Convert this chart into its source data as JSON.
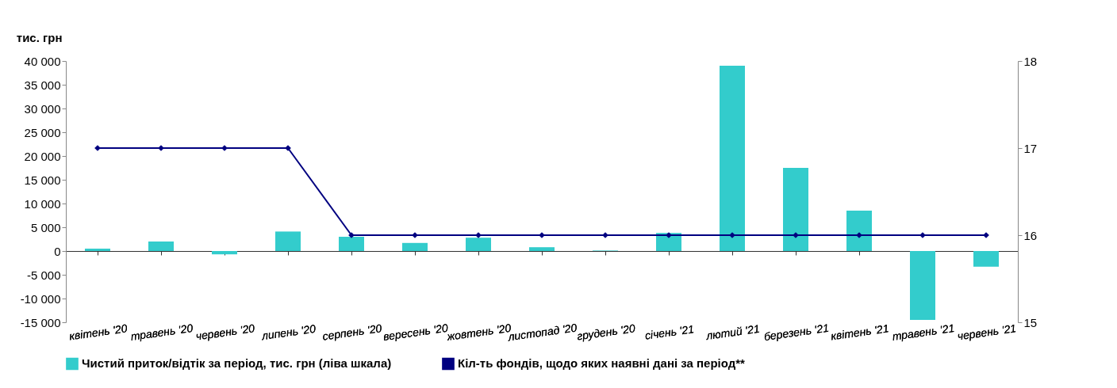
{
  "chart_data": {
    "type": "bar",
    "ylabel": "тис. грн",
    "categories": [
      "квітень '20",
      "травень '20",
      "червень '20",
      "липень '20",
      "серпень '20",
      "вересень '20",
      "жовтень '20",
      "листопад '20",
      "грудень '20",
      "січень '21",
      "лютий '21",
      "березень '21",
      "квітень '21",
      "травень '21",
      "червень '21"
    ],
    "series": [
      {
        "name": "Чистий приток/відтік за період, тис. грн (ліва шкала)",
        "color": "#33cccc",
        "values": [
          500,
          2000,
          -700,
          4100,
          3000,
          1700,
          2800,
          800,
          100,
          3800,
          39000,
          17500,
          8500,
          -14500,
          -3300
        ]
      },
      {
        "name": "Кіл-ть фондів, щодо яких наявні дані за період**",
        "color": "#000080",
        "type": "line",
        "axis": "y2",
        "values": [
          17,
          17,
          17,
          17,
          16,
          16,
          16,
          16,
          16,
          16,
          16,
          16,
          16,
          16,
          16
        ]
      }
    ],
    "ylim": [
      -15000,
      40000
    ],
    "yticks": [
      {
        "value": -15000,
        "label": "-15 000"
      },
      {
        "value": -10000,
        "label": "-10 000"
      },
      {
        "value": -5000,
        "label": "-5 000"
      },
      0,
      {
        "value": 5000,
        "label": "5 000"
      },
      {
        "value": 10000,
        "label": "10 000"
      },
      {
        "value": 15000,
        "label": "15 000"
      },
      {
        "value": 20000,
        "label": "20 000"
      },
      {
        "value": 25000,
        "label": "25 000"
      },
      {
        "value": 30000,
        "label": "30 000"
      },
      {
        "value": 35000,
        "label": "35 000"
      },
      {
        "value": 40000,
        "label": "40 000"
      }
    ],
    "y2lim": [
      15,
      18
    ],
    "y2ticks": [
      15,
      16,
      17,
      18
    ],
    "legend": "bottom",
    "marker": "diamond",
    "line_style": "solid"
  }
}
